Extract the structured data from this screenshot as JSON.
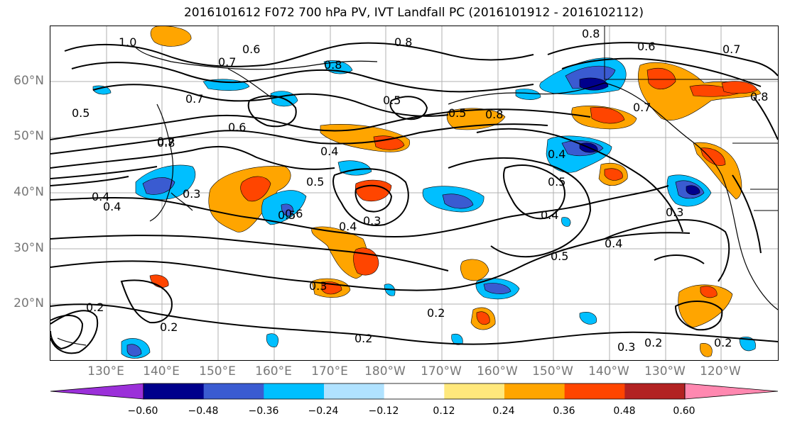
{
  "title": "2016101612 F072 700 hPa PV, IVT Landfall PC (2016101912 - 2016102112)",
  "lat_labels": [
    "60°N",
    "50°N",
    "40°N",
    "30°N",
    "20°N"
  ],
  "lon_labels": [
    "130°E",
    "140°E",
    "150°E",
    "160°E",
    "170°E",
    "180°W",
    "170°W",
    "160°W",
    "150°W",
    "140°W",
    "130°W",
    "120°W"
  ],
  "colorbar": {
    "ticks": [
      "−0.60",
      "−0.48",
      "−0.36",
      "−0.24",
      "−0.12",
      "0.12",
      "0.24",
      "0.36",
      "0.48",
      "0.60"
    ],
    "colors": [
      "#9b30d9",
      "#00008b",
      "#3a5bd1",
      "#00bfff",
      "#b0e2ff",
      "#ffffff",
      "#ffe87c",
      "#ffa500",
      "#ff4500",
      "#b22222",
      "#ff88b0"
    ]
  },
  "contour_labels": [
    "1.0",
    "0.6",
    "0.7",
    "0.8",
    "0.8",
    "0.8",
    "0.6",
    "0.7",
    "0.8",
    "0.5",
    "0.5",
    "0.7",
    "0.8",
    "0.7",
    "0.5",
    "0.7",
    "0.6",
    "0.5",
    "0.8",
    "0.4",
    "0.4",
    "0.5",
    "0.3",
    "0.4",
    "0.5",
    "0.6",
    "0.4",
    "0.3",
    "0.4",
    "0.4",
    "0.5",
    "0.4",
    "0.3",
    "0.3",
    "0.2",
    "0.2",
    "0.2",
    "0.2",
    "0.3",
    "0.2",
    "0.2"
  ]
}
